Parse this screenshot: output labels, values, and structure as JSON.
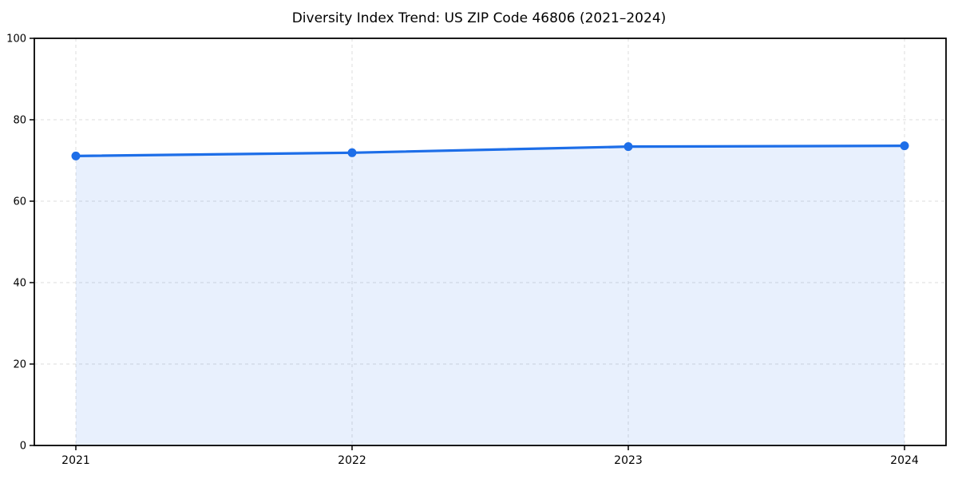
{
  "chart_data": {
    "type": "area",
    "title": "Diversity Index Trend: US ZIP Code 46806 (2021–2024)",
    "categories": [
      "2021",
      "2022",
      "2023",
      "2024"
    ],
    "series": [
      {
        "name": "Diversity Index",
        "values": [
          71.1,
          71.9,
          73.4,
          73.6
        ]
      }
    ],
    "xlabel": "",
    "ylabel": "",
    "ylim": [
      0,
      100
    ],
    "yticks": [
      0,
      20,
      40,
      60,
      80,
      100
    ],
    "grid": true,
    "grid_style": "dashed",
    "legend_position": "none",
    "colors": {
      "line": "#1d6ee8",
      "marker": "#1d6ee8",
      "area_fill": "#1d6ee8",
      "area_fill_opacity": "0.10",
      "grid": "#dcdcdc",
      "axis": "#000000",
      "text": "#000000",
      "background": "#ffffff"
    }
  }
}
